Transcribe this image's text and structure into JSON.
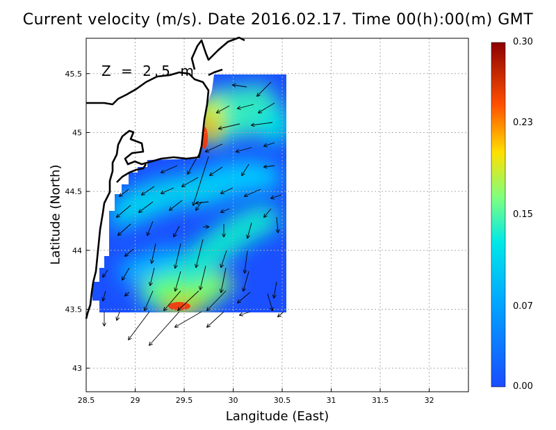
{
  "title": "Current velocity (m/s). Date 2016.02.17. Time 00(h):00(m) GMT",
  "xlabel": "Langitude (East)",
  "ylabel": "Latitude (North)",
  "depth_label": "Z = 2.5 m",
  "chart_data": {
    "type": "heatmap",
    "xlim": [
      28.5,
      32.4
    ],
    "ylim": [
      42.8,
      45.8
    ],
    "xticks": [
      "28.5",
      "29",
      "29.5",
      "30",
      "30.5",
      "31",
      "31.5",
      "32"
    ],
    "yticks": [
      "43",
      "43.5",
      "44",
      "44.5",
      "45",
      "45.5"
    ],
    "grid": true,
    "colorbar": {
      "min": 0.0,
      "max": 0.3,
      "ticks": [
        "0.00",
        "0.07",
        "0.15",
        "0.23",
        "0.30"
      ],
      "colors": [
        "#1a4cff",
        "#00c8ff",
        "#7fff7f",
        "#ffe000",
        "#ff3000",
        "#8b0000"
      ]
    },
    "hotspots": [
      {
        "lon": 29.38,
        "lat": 43.5,
        "value": 0.28
      },
      {
        "lon": 29.68,
        "lat": 44.95,
        "value": 0.27
      },
      {
        "lon": 29.85,
        "lat": 45.2,
        "value": 0.17
      },
      {
        "lon": 29.35,
        "lat": 43.8,
        "value": 0.16
      },
      {
        "lon": 29.55,
        "lat": 44.2,
        "value": 0.12
      },
      {
        "lon": 30.0,
        "lat": 43.95,
        "value": 0.12
      }
    ]
  }
}
